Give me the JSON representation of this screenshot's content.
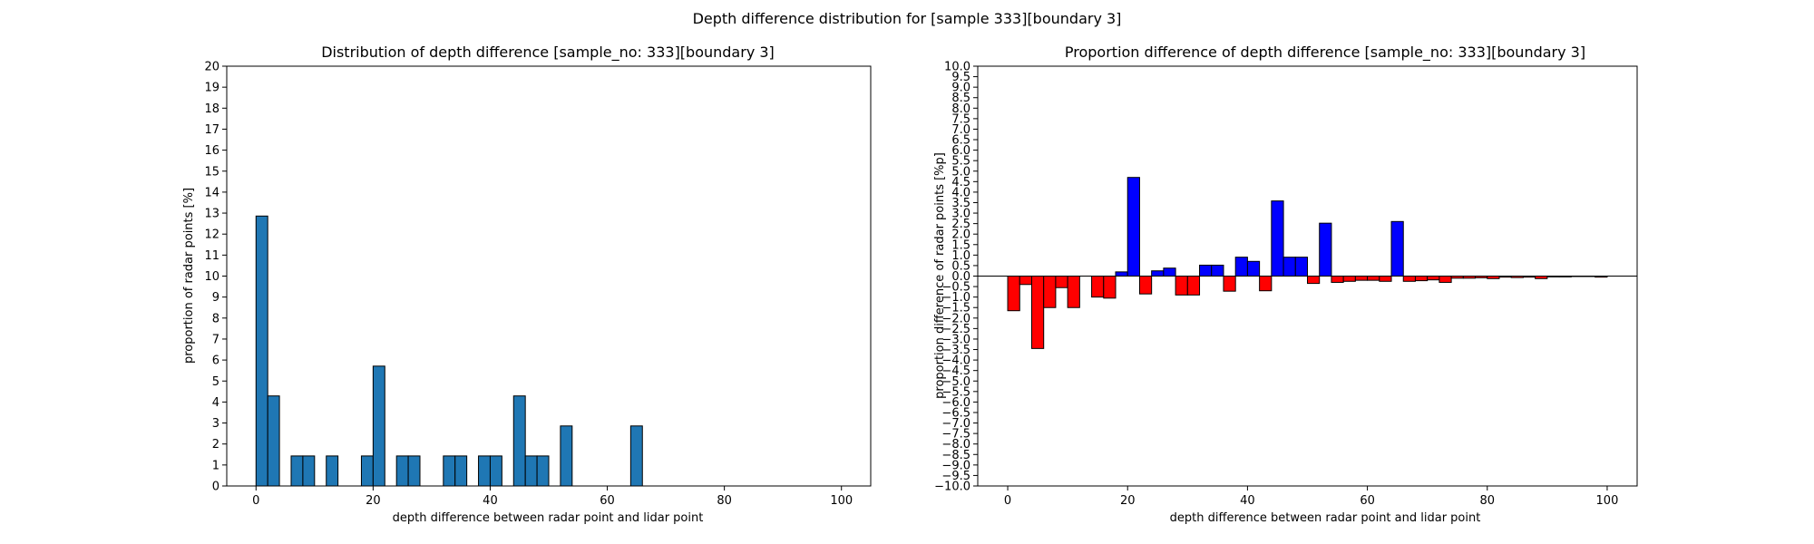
{
  "figure": {
    "suptitle": "Depth difference distribution for [sample 333][boundary 3]"
  },
  "chart_data": [
    {
      "type": "bar",
      "title": "Distribution of depth difference [sample_no: 333][boundary 3]",
      "xlabel": "depth difference between radar point and lidar point",
      "ylabel": "proportion of radar points [%]",
      "xlim": [
        -5,
        105
      ],
      "ylim": [
        0,
        20
      ],
      "xticks": [
        0,
        20,
        40,
        60,
        80,
        100
      ],
      "yticks": [
        0,
        1,
        2,
        3,
        4,
        5,
        6,
        7,
        8,
        9,
        10,
        11,
        12,
        13,
        14,
        15,
        16,
        17,
        18,
        19,
        20
      ],
      "bin_width": 2,
      "bar_color": "#1f77b4",
      "bars": [
        {
          "x": 0,
          "y": 12.86
        },
        {
          "x": 2,
          "y": 4.29
        },
        {
          "x": 6,
          "y": 1.43
        },
        {
          "x": 8,
          "y": 1.43
        },
        {
          "x": 12,
          "y": 1.43
        },
        {
          "x": 18,
          "y": 1.43
        },
        {
          "x": 20,
          "y": 5.71
        },
        {
          "x": 24,
          "y": 1.43
        },
        {
          "x": 26,
          "y": 1.43
        },
        {
          "x": 32,
          "y": 1.43
        },
        {
          "x": 34,
          "y": 1.43
        },
        {
          "x": 38,
          "y": 1.43
        },
        {
          "x": 40,
          "y": 1.43
        },
        {
          "x": 44,
          "y": 4.29
        },
        {
          "x": 46,
          "y": 1.43
        },
        {
          "x": 48,
          "y": 1.43
        },
        {
          "x": 52,
          "y": 2.86
        },
        {
          "x": 64,
          "y": 2.86
        }
      ]
    },
    {
      "type": "bar",
      "title": "Proportion difference of depth difference [sample_no: 333][boundary 3]",
      "xlabel": "depth difference between radar point and lidar point",
      "ylabel": "proportion difference of radar points [%p]",
      "xlim": [
        -5,
        105
      ],
      "ylim": [
        -10,
        10
      ],
      "xticks": [
        0,
        20,
        40,
        60,
        80,
        100
      ],
      "yticks": [
        -10,
        -9.5,
        -9,
        -8.5,
        -8,
        -7.5,
        -7,
        -6.5,
        -6,
        -5.5,
        -5,
        -4.5,
        -4,
        -3.5,
        -3,
        -2.5,
        -2,
        -1.5,
        -1,
        -0.5,
        0,
        0.5,
        1,
        1.5,
        2,
        2.5,
        3,
        3.5,
        4,
        4.5,
        5,
        5.5,
        6,
        6.5,
        7,
        7.5,
        8,
        8.5,
        9,
        9.5,
        10
      ],
      "ytick_labels": [
        "−10.0",
        "−9.5",
        "−9.0",
        "−8.5",
        "−8.0",
        "−7.5",
        "−7.0",
        "−6.5",
        "−6.0",
        "−5.5",
        "−5.0",
        "−4.5",
        "−4.0",
        "−3.5",
        "−3.0",
        "−2.5",
        "−2.0",
        "−1.5",
        "−1.0",
        "−0.5",
        "0.0",
        "0.5",
        "1.0",
        "1.5",
        "2.0",
        "2.5",
        "3.0",
        "3.5",
        "4.0",
        "4.5",
        "5.0",
        "5.5",
        "6.0",
        "6.5",
        "7.0",
        "7.5",
        "8.0",
        "8.5",
        "9.0",
        "9.5",
        "10.0"
      ],
      "bin_width": 2,
      "positive_color": "#0000ff",
      "negative_color": "#ff0000",
      "bars": [
        {
          "x": 0,
          "y": -1.65
        },
        {
          "x": 2,
          "y": -0.4
        },
        {
          "x": 4,
          "y": -3.45
        },
        {
          "x": 6,
          "y": -1.5
        },
        {
          "x": 8,
          "y": -0.55
        },
        {
          "x": 10,
          "y": -1.5
        },
        {
          "x": 12,
          "y": 0.0
        },
        {
          "x": 14,
          "y": -1.0
        },
        {
          "x": 16,
          "y": -1.05
        },
        {
          "x": 18,
          "y": 0.2
        },
        {
          "x": 20,
          "y": 4.7
        },
        {
          "x": 22,
          "y": -0.85
        },
        {
          "x": 24,
          "y": 0.25
        },
        {
          "x": 26,
          "y": 0.38
        },
        {
          "x": 28,
          "y": -0.9
        },
        {
          "x": 30,
          "y": -0.9
        },
        {
          "x": 32,
          "y": 0.52
        },
        {
          "x": 34,
          "y": 0.52
        },
        {
          "x": 36,
          "y": -0.72
        },
        {
          "x": 38,
          "y": 0.9
        },
        {
          "x": 40,
          "y": 0.7
        },
        {
          "x": 42,
          "y": -0.7
        },
        {
          "x": 44,
          "y": 3.58
        },
        {
          "x": 46,
          "y": 0.9
        },
        {
          "x": 48,
          "y": 0.9
        },
        {
          "x": 50,
          "y": -0.35
        },
        {
          "x": 52,
          "y": 2.52
        },
        {
          "x": 54,
          "y": -0.3
        },
        {
          "x": 56,
          "y": -0.25
        },
        {
          "x": 58,
          "y": -0.2
        },
        {
          "x": 60,
          "y": -0.2
        },
        {
          "x": 62,
          "y": -0.25
        },
        {
          "x": 64,
          "y": 2.6
        },
        {
          "x": 66,
          "y": -0.25
        },
        {
          "x": 68,
          "y": -0.22
        },
        {
          "x": 70,
          "y": -0.18
        },
        {
          "x": 72,
          "y": -0.3
        },
        {
          "x": 74,
          "y": -0.1
        },
        {
          "x": 76,
          "y": -0.1
        },
        {
          "x": 78,
          "y": -0.08
        },
        {
          "x": 80,
          "y": -0.12
        },
        {
          "x": 82,
          "y": -0.05
        },
        {
          "x": 84,
          "y": -0.07
        },
        {
          "x": 86,
          "y": -0.05
        },
        {
          "x": 88,
          "y": -0.12
        },
        {
          "x": 90,
          "y": -0.04
        },
        {
          "x": 92,
          "y": -0.04
        },
        {
          "x": 94,
          "y": -0.02
        },
        {
          "x": 96,
          "y": -0.02
        },
        {
          "x": 98,
          "y": -0.05
        }
      ]
    }
  ]
}
